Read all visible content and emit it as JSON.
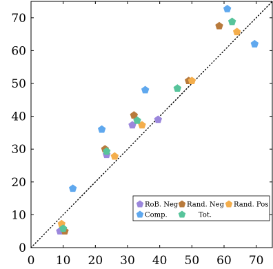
{
  "chart_data": {
    "type": "scatter",
    "title": "",
    "xlabel": "",
    "ylabel": "",
    "xlim": [
      0,
      75
    ],
    "ylim": [
      0,
      75
    ],
    "xticks": [
      0,
      10,
      20,
      30,
      40,
      50,
      60,
      70
    ],
    "yticks": [
      0,
      10,
      20,
      30,
      40,
      50,
      60,
      70
    ],
    "grid": false,
    "reference_line": "y = x (dotted)",
    "legend_position": "lower-right",
    "series": [
      {
        "name": "RoB. Neg",
        "color": "#9b87dc",
        "marker": "pentagon",
        "points": [
          [
            9,
            5
          ],
          [
            23.5,
            28.3
          ],
          [
            31.5,
            37.3
          ],
          [
            39.5,
            39
          ]
        ]
      },
      {
        "name": "Rand. Neg",
        "color": "#b87a3c",
        "marker": "pentagon",
        "points": [
          [
            10.5,
            5
          ],
          [
            23,
            30
          ],
          [
            32,
            40.3
          ],
          [
            49,
            50.8
          ],
          [
            58.5,
            67.5
          ]
        ]
      },
      {
        "name": "Rand. Pos",
        "color": "#f4ae4c",
        "marker": "pentagon",
        "points": [
          [
            9.5,
            7.2
          ],
          [
            26,
            27.8
          ],
          [
            34.5,
            37.3
          ],
          [
            50,
            50.8
          ],
          [
            64,
            65.7
          ]
        ]
      },
      {
        "name": "Comp.",
        "color": "#5fa8ee",
        "marker": "pentagon",
        "points": [
          [
            13,
            18
          ],
          [
            22,
            36
          ],
          [
            35.5,
            48
          ],
          [
            61,
            72.7
          ],
          [
            69.5,
            62
          ]
        ]
      },
      {
        "name": "Tot.",
        "color": "#57c49b",
        "marker": "pentagon",
        "points": [
          [
            10,
            5.8
          ],
          [
            23.5,
            29.3
          ],
          [
            33,
            38.7
          ],
          [
            45.5,
            48.5
          ],
          [
            62.5,
            68.8
          ]
        ]
      }
    ]
  }
}
